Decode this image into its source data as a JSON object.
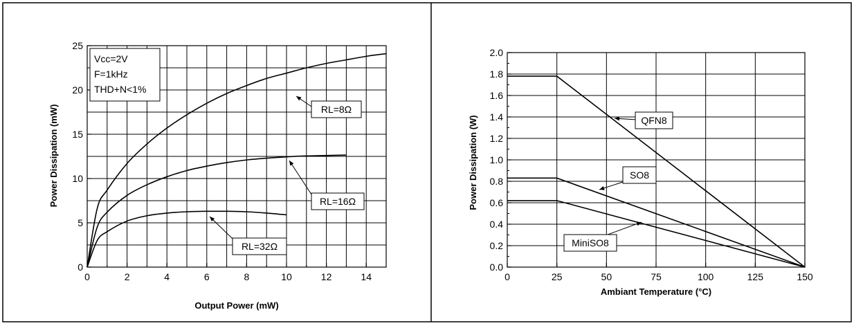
{
  "chart_data": [
    {
      "type": "line",
      "xlabel": "Output Power (mW)",
      "ylabel": "Power Dissipation (mW)",
      "xlim": [
        0,
        15
      ],
      "ylim": [
        0,
        25
      ],
      "xticks": [
        "0",
        "2",
        "4",
        "6",
        "8",
        "10",
        "12",
        "14"
      ],
      "yticks": [
        "0",
        "5",
        "10",
        "15",
        "20",
        "25"
      ],
      "grid": true,
      "conditions": [
        "Vcc=2V",
        "F=1kHz",
        "THD+N<1%"
      ],
      "series": [
        {
          "name": "RL=8Ω",
          "x": [
            0,
            0.5,
            1,
            2,
            3,
            4,
            5,
            6,
            7,
            8,
            9,
            10,
            11,
            12,
            13,
            14,
            15
          ],
          "y": [
            0,
            6.6,
            8.7,
            11.7,
            13.9,
            15.7,
            17.2,
            18.5,
            19.6,
            20.5,
            21.3,
            21.9,
            22.5,
            23.0,
            23.4,
            23.8,
            24.1
          ]
        },
        {
          "name": "RL=16Ω",
          "x": [
            0,
            0.5,
            1,
            2,
            3,
            4,
            5,
            6,
            7,
            8,
            9,
            10,
            11,
            12,
            13
          ],
          "y": [
            0,
            4.5,
            6.2,
            8.1,
            9.3,
            10.2,
            10.9,
            11.4,
            11.8,
            12.1,
            12.3,
            12.45,
            12.55,
            12.6,
            12.65
          ]
        },
        {
          "name": "RL=32Ω",
          "x": [
            0,
            0.5,
            1,
            2,
            3,
            4,
            5,
            6,
            7,
            8,
            9,
            10
          ],
          "y": [
            0,
            3.0,
            4.0,
            5.2,
            5.8,
            6.1,
            6.25,
            6.3,
            6.3,
            6.25,
            6.1,
            5.9
          ]
        }
      ]
    },
    {
      "type": "line",
      "xlabel": "Ambiant Temperature (°C)",
      "ylabel": "Power Dissipation (W)",
      "xlim": [
        0,
        150
      ],
      "ylim": [
        0,
        2.0
      ],
      "xticks": [
        "0",
        "25",
        "50",
        "75",
        "100",
        "125",
        "150"
      ],
      "yticks": [
        "0.0",
        "0.2",
        "0.4",
        "0.6",
        "0.8",
        "1.0",
        "1.2",
        "1.4",
        "1.6",
        "1.8",
        "2.0"
      ],
      "grid": true,
      "series": [
        {
          "name": "QFN8",
          "x": [
            0,
            25,
            150
          ],
          "y": [
            1.78,
            1.78,
            0
          ]
        },
        {
          "name": "SO8",
          "x": [
            0,
            25,
            150
          ],
          "y": [
            0.83,
            0.83,
            0
          ]
        },
        {
          "name": "MiniSO8",
          "x": [
            0,
            25,
            150
          ],
          "y": [
            0.62,
            0.62,
            0
          ]
        }
      ]
    }
  ]
}
